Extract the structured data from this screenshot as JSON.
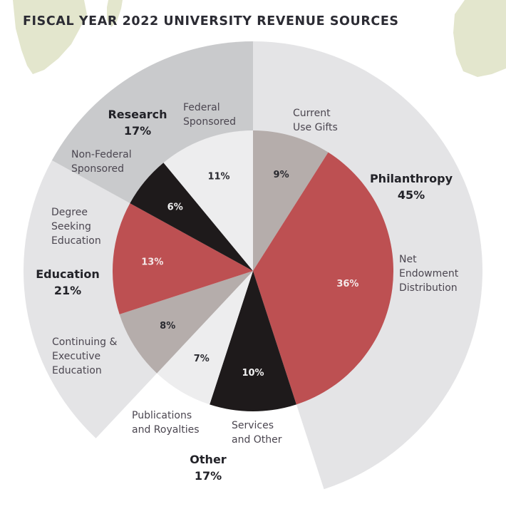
{
  "chart_data": {
    "type": "pie",
    "subtype": "nested-pie",
    "title": "FISCAL YEAR 2022 UNIVERSITY REVENUE SOURCES",
    "categories": [
      {
        "name": "Philanthropy",
        "value": 45,
        "value_label": "45%",
        "ring_color": "#e4e4e6",
        "subcategories": [
          {
            "name": "Current Use Gifts",
            "label_lines": [
              "Current",
              "Use Gifts"
            ],
            "value": 9,
            "value_label": "9%",
            "color": "#b5adab",
            "text_color": "#2a2a30"
          },
          {
            "name": "Net Endowment Distribution",
            "label_lines": [
              "Net",
              "Endowment",
              "Distribution"
            ],
            "value": 36,
            "value_label": "36%",
            "color": "#bd5052",
            "text_color": "#f4e8e8"
          }
        ]
      },
      {
        "name": "Other",
        "value": 17,
        "value_label": "17%",
        "ring_color": "#ffffff",
        "subcategories": [
          {
            "name": "Services and Other",
            "label_lines": [
              "Services",
              "and Other"
            ],
            "value": 10,
            "value_label": "10%",
            "color": "#1e1a1b",
            "text_color": "#f2f2f2"
          },
          {
            "name": "Publications and Royalties",
            "label_lines": [
              "Publications",
              "and Royalties"
            ],
            "value": 7,
            "value_label": "7%",
            "color": "#ededee",
            "text_color": "#2a2a30"
          }
        ]
      },
      {
        "name": "Education",
        "value": 21,
        "value_label": "21%",
        "ring_color": "#e4e4e6",
        "subcategories": [
          {
            "name": "Continuing & Executive Education",
            "label_lines": [
              "Continuing &",
              "Executive",
              "Education"
            ],
            "value": 8,
            "value_label": "8%",
            "color": "#b5adab",
            "text_color": "#2a2a30"
          },
          {
            "name": "Degree Seeking Education",
            "label_lines": [
              "Degree",
              "Seeking",
              "Education"
            ],
            "value": 13,
            "value_label": "13%",
            "color": "#bd5052",
            "text_color": "#f4e8e8"
          }
        ]
      },
      {
        "name": "Research",
        "value": 17,
        "value_label": "17%",
        "ring_color": "#c9cacc",
        "subcategories": [
          {
            "name": "Non-Federal Sponsored",
            "label_lines": [
              "Non-Federal",
              "Sponsored"
            ],
            "value": 6,
            "value_label": "6%",
            "color": "#1e1a1b",
            "text_color": "#f2f2f2"
          },
          {
            "name": "Federal Sponsored",
            "label_lines": [
              "Federal",
              "Sponsored"
            ],
            "value": 11,
            "value_label": "11%",
            "color": "#ededee",
            "text_color": "#2a2a30"
          }
        ]
      }
    ],
    "start_angle": "12 o'clock",
    "direction": "clockwise",
    "legend": "none"
  },
  "decoration": {
    "background_shapes_color": "#e3e6cd"
  }
}
